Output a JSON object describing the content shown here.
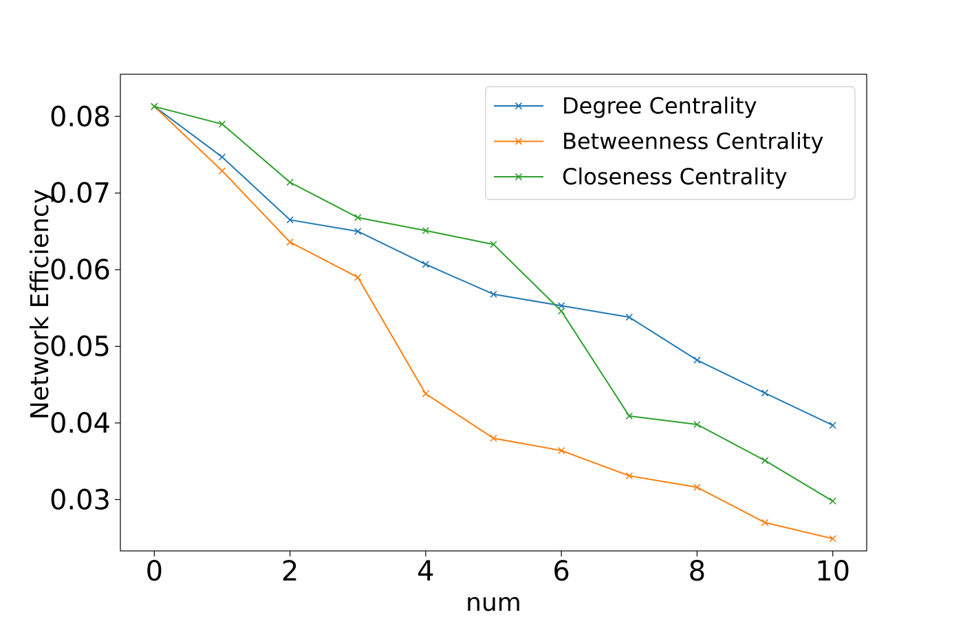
{
  "chart_data": {
    "type": "line",
    "xlabel": "num",
    "ylabel": "Network Efficiency",
    "xlim": [
      -0.5,
      10.5
    ],
    "ylim": [
      0.0233,
      0.0855
    ],
    "xticks": [
      0,
      2,
      4,
      6,
      8,
      10
    ],
    "xtick_labels": [
      "0",
      "2",
      "4",
      "6",
      "8",
      "10"
    ],
    "yticks": [
      0.03,
      0.04,
      0.05,
      0.06,
      0.07,
      0.08
    ],
    "ytick_labels": [
      "0.03",
      "0.04",
      "0.05",
      "0.06",
      "0.07",
      "0.08"
    ],
    "grid": false,
    "legend_position": "top-right",
    "marker": "x",
    "x": [
      0,
      1,
      2,
      3,
      4,
      5,
      6,
      7,
      8,
      9,
      10
    ],
    "series": [
      {
        "name": "Degree Centrality",
        "color": "#1f77b4",
        "values": [
          0.0813,
          0.0747,
          0.0665,
          0.065,
          0.0607,
          0.0568,
          0.0553,
          0.0538,
          0.0482,
          0.0439,
          0.0397
        ]
      },
      {
        "name": "Betweenness Centrality",
        "color": "#ff7f0e",
        "values": [
          0.0813,
          0.0729,
          0.0636,
          0.059,
          0.0438,
          0.038,
          0.0364,
          0.0331,
          0.0316,
          0.027,
          0.0249
        ]
      },
      {
        "name": "Closeness Centrality",
        "color": "#2ca02c",
        "values": [
          0.0813,
          0.079,
          0.0714,
          0.0668,
          0.0651,
          0.0633,
          0.0546,
          0.0409,
          0.0398,
          0.0351,
          0.0298
        ]
      }
    ]
  }
}
